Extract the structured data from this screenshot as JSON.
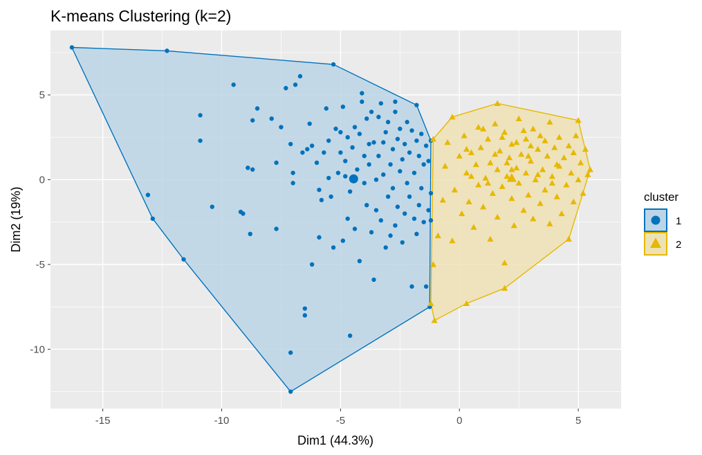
{
  "chart_data": {
    "type": "scatter",
    "title": "K-means Clustering (k=2)",
    "xlabel": "Dim1 (44.3%)",
    "ylabel": "Dim2 (19%)",
    "xlim": [
      -17.2,
      6.8
    ],
    "ylim": [
      -13.5,
      8.8
    ],
    "x_ticks": [
      -15,
      -10,
      -5,
      0,
      5
    ],
    "y_ticks": [
      -10,
      -5,
      0,
      5
    ],
    "x_tick_labels": [
      "-15",
      "-10",
      "-5",
      "0",
      "5"
    ],
    "y_tick_labels": [
      "-10",
      "-5",
      "0",
      "5"
    ],
    "grid": true,
    "legend": {
      "title": "cluster",
      "position": "right"
    },
    "series": [
      {
        "name": "1",
        "marker": "circle",
        "color": "#0072BD",
        "fill": "#BCD5E6",
        "centroid": [
          -4.45,
          0.05
        ],
        "hull": [
          [
            -16.3,
            7.8
          ],
          [
            -12.3,
            7.6
          ],
          [
            -5.3,
            6.8
          ],
          [
            -1.8,
            4.4
          ],
          [
            -1.2,
            2.3
          ],
          [
            -1.25,
            -7.5
          ],
          [
            -7.1,
            -12.5
          ],
          [
            -11.6,
            -4.7
          ],
          [
            -12.9,
            -2.3
          ],
          [
            -16.3,
            7.8
          ]
        ],
        "points": [
          [
            -16.3,
            7.8
          ],
          [
            -12.3,
            7.6
          ],
          [
            -5.3,
            6.8
          ],
          [
            -1.8,
            4.4
          ],
          [
            -1.2,
            2.3
          ],
          [
            -1.25,
            -7.5
          ],
          [
            -7.1,
            -12.5
          ],
          [
            -11.6,
            -4.7
          ],
          [
            -12.9,
            -2.3
          ],
          [
            -13.1,
            -0.9
          ],
          [
            -10.4,
            -1.6
          ],
          [
            -10.9,
            2.3
          ],
          [
            -10.9,
            3.8
          ],
          [
            -9.5,
            5.6
          ],
          [
            -9.2,
            -1.9
          ],
          [
            -9.1,
            -2.0
          ],
          [
            -8.9,
            0.7
          ],
          [
            -8.7,
            0.6
          ],
          [
            -8.8,
            -3.2
          ],
          [
            -8.7,
            3.5
          ],
          [
            -8.5,
            4.2
          ],
          [
            -7.9,
            3.6
          ],
          [
            -7.7,
            -2.9
          ],
          [
            -7.7,
            1.0
          ],
          [
            -7.5,
            3.1
          ],
          [
            -7.3,
            5.4
          ],
          [
            -7.1,
            -10.2
          ],
          [
            -7.1,
            2.1
          ],
          [
            -7.0,
            0.4
          ],
          [
            -7.0,
            -0.2
          ],
          [
            -6.9,
            5.6
          ],
          [
            -6.7,
            6.1
          ],
          [
            -6.6,
            1.6
          ],
          [
            -6.5,
            -7.6
          ],
          [
            -6.5,
            -8.0
          ],
          [
            -6.4,
            1.8
          ],
          [
            -6.3,
            3.3
          ],
          [
            -6.2,
            -5.0
          ],
          [
            -6.2,
            2.0
          ],
          [
            -6.0,
            1.0
          ],
          [
            -5.9,
            -0.6
          ],
          [
            -5.9,
            -3.4
          ],
          [
            -5.8,
            -1.2
          ],
          [
            -5.7,
            1.6
          ],
          [
            -5.6,
            4.2
          ],
          [
            -5.5,
            2.3
          ],
          [
            -5.5,
            0.1
          ],
          [
            -5.4,
            -1.0
          ],
          [
            -5.3,
            -4.0
          ],
          [
            -5.2,
            3.0
          ],
          [
            -5.1,
            0.4
          ],
          [
            -5.0,
            2.8
          ],
          [
            -5.0,
            1.6
          ],
          [
            -4.9,
            4.3
          ],
          [
            -4.9,
            -3.6
          ],
          [
            -4.8,
            1.1
          ],
          [
            -4.8,
            0.2
          ],
          [
            -4.7,
            -2.3
          ],
          [
            -4.7,
            2.5
          ],
          [
            -4.6,
            -0.7
          ],
          [
            -4.6,
            -9.2
          ],
          [
            -4.5,
            1.9
          ],
          [
            -4.4,
            3.1
          ],
          [
            -4.4,
            -2.9
          ],
          [
            -4.3,
            0.6
          ],
          [
            -4.2,
            -4.8
          ],
          [
            -4.2,
            2.7
          ],
          [
            -4.1,
            5.1
          ],
          [
            -4.1,
            4.6
          ],
          [
            -4.0,
            1.4
          ],
          [
            -4.0,
            -0.2
          ],
          [
            -3.9,
            3.6
          ],
          [
            -3.9,
            -1.5
          ],
          [
            -3.8,
            2.1
          ],
          [
            -3.8,
            0.9
          ],
          [
            -3.7,
            -3.1
          ],
          [
            -3.7,
            4.0
          ],
          [
            -3.6,
            -5.9
          ],
          [
            -3.6,
            2.2
          ],
          [
            -3.5,
            0.0
          ],
          [
            -3.5,
            -1.8
          ],
          [
            -3.4,
            3.7
          ],
          [
            -3.4,
            1.4
          ],
          [
            -3.3,
            -2.4
          ],
          [
            -3.3,
            4.5
          ],
          [
            -3.2,
            2.2
          ],
          [
            -3.2,
            0.3
          ],
          [
            -3.1,
            -4.0
          ],
          [
            -3.1,
            2.8
          ],
          [
            -3.0,
            -1.0
          ],
          [
            -3.0,
            3.4
          ],
          [
            -2.9,
            0.9
          ],
          [
            -2.9,
            -3.3
          ],
          [
            -2.8,
            1.8
          ],
          [
            -2.8,
            -0.5
          ],
          [
            -2.7,
            4.0
          ],
          [
            -2.7,
            -2.7
          ],
          [
            -2.7,
            4.6
          ],
          [
            -2.6,
            2.4
          ],
          [
            -2.6,
            -1.6
          ],
          [
            -2.5,
            0.5
          ],
          [
            -2.5,
            3.0
          ],
          [
            -2.4,
            -3.7
          ],
          [
            -2.4,
            1.2
          ],
          [
            -2.3,
            -2.0
          ],
          [
            -2.3,
            2.1
          ],
          [
            -2.2,
            -0.2
          ],
          [
            -2.2,
            3.4
          ],
          [
            -2.1,
            1.6
          ],
          [
            -2.1,
            -1.0
          ],
          [
            -2.0,
            -6.3
          ],
          [
            -2.0,
            2.9
          ],
          [
            -1.9,
            -2.3
          ],
          [
            -1.9,
            0.4
          ],
          [
            -1.8,
            2.3
          ],
          [
            -1.8,
            -3.2
          ],
          [
            -1.7,
            -1.5
          ],
          [
            -1.7,
            1.4
          ],
          [
            -1.6,
            -0.5
          ],
          [
            -1.6,
            2.7
          ],
          [
            -1.5,
            -2.5
          ],
          [
            -1.5,
            0.9
          ],
          [
            -1.4,
            -6.3
          ],
          [
            -1.4,
            2.0
          ],
          [
            -1.3,
            -1.8
          ],
          [
            -1.3,
            1.1
          ],
          [
            -1.2,
            -0.8
          ],
          [
            -1.2,
            -2.4
          ]
        ]
      },
      {
        "name": "2",
        "marker": "triangle",
        "color": "#E7B800",
        "fill": "#EEE2B5",
        "centroid": [
          2.2,
          0.1
        ],
        "hull": [
          [
            -1.1,
            2.4
          ],
          [
            -0.3,
            3.7
          ],
          [
            1.6,
            4.5
          ],
          [
            5.0,
            3.5
          ],
          [
            5.5,
            0.6
          ],
          [
            4.6,
            -3.5
          ],
          [
            1.9,
            -6.4
          ],
          [
            0.3,
            -7.3
          ],
          [
            -1.05,
            -8.3
          ],
          [
            -1.2,
            -7.3
          ],
          [
            -1.1,
            2.4
          ]
        ],
        "points": [
          [
            -1.1,
            2.4
          ],
          [
            -0.3,
            3.7
          ],
          [
            1.6,
            4.5
          ],
          [
            5.0,
            3.5
          ],
          [
            5.5,
            0.6
          ],
          [
            4.6,
            -3.5
          ],
          [
            1.9,
            -6.4
          ],
          [
            0.3,
            -7.3
          ],
          [
            -1.05,
            -8.3
          ],
          [
            -1.2,
            -7.3
          ],
          [
            -1.1,
            -5.0
          ],
          [
            -0.9,
            -3.3
          ],
          [
            -0.7,
            -1.2
          ],
          [
            -0.6,
            0.8
          ],
          [
            -0.5,
            2.2
          ],
          [
            -0.3,
            -3.6
          ],
          [
            -0.2,
            -0.6
          ],
          [
            0.0,
            1.4
          ],
          [
            0.1,
            -2.0
          ],
          [
            0.2,
            2.6
          ],
          [
            0.3,
            0.4
          ],
          [
            0.4,
            -1.3
          ],
          [
            0.5,
            1.6
          ],
          [
            0.6,
            -2.8
          ],
          [
            0.7,
            0.9
          ],
          [
            0.8,
            3.1
          ],
          [
            0.8,
            -0.3
          ],
          [
            0.9,
            1.9
          ],
          [
            1.0,
            -1.6
          ],
          [
            1.1,
            0.1
          ],
          [
            1.2,
            2.4
          ],
          [
            1.3,
            -3.5
          ],
          [
            1.3,
            1.0
          ],
          [
            1.4,
            -0.8
          ],
          [
            1.5,
            3.3
          ],
          [
            1.6,
            0.6
          ],
          [
            1.6,
            -2.2
          ],
          [
            1.7,
            1.7
          ],
          [
            1.8,
            -0.4
          ],
          [
            1.9,
            2.8
          ],
          [
            1.9,
            -4.9
          ],
          [
            2.0,
            0.2
          ],
          [
            2.1,
            1.3
          ],
          [
            2.2,
            -1.1
          ],
          [
            2.2,
            2.1
          ],
          [
            2.3,
            -2.7
          ],
          [
            2.4,
            0.7
          ],
          [
            2.5,
            3.6
          ],
          [
            2.5,
            -0.2
          ],
          [
            2.6,
            1.5
          ],
          [
            2.7,
            -1.8
          ],
          [
            2.8,
            0.4
          ],
          [
            2.8,
            2.4
          ],
          [
            2.9,
            -0.9
          ],
          [
            3.0,
            1.1
          ],
          [
            3.1,
            3.0
          ],
          [
            3.1,
            -2.3
          ],
          [
            3.2,
            0.0
          ],
          [
            3.3,
            1.8
          ],
          [
            3.4,
            -1.4
          ],
          [
            3.4,
            2.6
          ],
          [
            3.5,
            0.6
          ],
          [
            3.6,
            -0.6
          ],
          [
            3.7,
            1.4
          ],
          [
            3.8,
            -2.6
          ],
          [
            3.8,
            3.4
          ],
          [
            3.9,
            0.2
          ],
          [
            4.0,
            1.9
          ],
          [
            4.1,
            -1.0
          ],
          [
            4.2,
            2.5
          ],
          [
            4.2,
            0.8
          ],
          [
            4.3,
            -2.0
          ],
          [
            4.4,
            1.3
          ],
          [
            4.5,
            -0.3
          ],
          [
            4.6,
            2.0
          ],
          [
            4.7,
            0.4
          ],
          [
            4.8,
            -1.3
          ],
          [
            4.8,
            1.6
          ],
          [
            4.9,
            2.6
          ],
          [
            5.0,
            0.0
          ],
          [
            5.1,
            1.0
          ],
          [
            5.2,
            -0.8
          ],
          [
            5.3,
            1.8
          ],
          [
            5.4,
            0.3
          ],
          [
            1.0,
            3.0
          ],
          [
            2.4,
            2.2
          ],
          [
            2.0,
            1.0
          ],
          [
            3.0,
            2.0
          ],
          [
            1.5,
            1.5
          ],
          [
            2.7,
            2.9
          ],
          [
            3.6,
            2.3
          ],
          [
            0.5,
            0.2
          ],
          [
            2.2,
            0.6
          ],
          [
            3.3,
            0.3
          ],
          [
            1.2,
            -0.2
          ],
          [
            0.3,
            1.8
          ],
          [
            2.9,
            1.4
          ],
          [
            1.8,
            2.5
          ],
          [
            4.1,
            0.9
          ],
          [
            3.9,
            -0.2
          ]
        ]
      }
    ]
  }
}
